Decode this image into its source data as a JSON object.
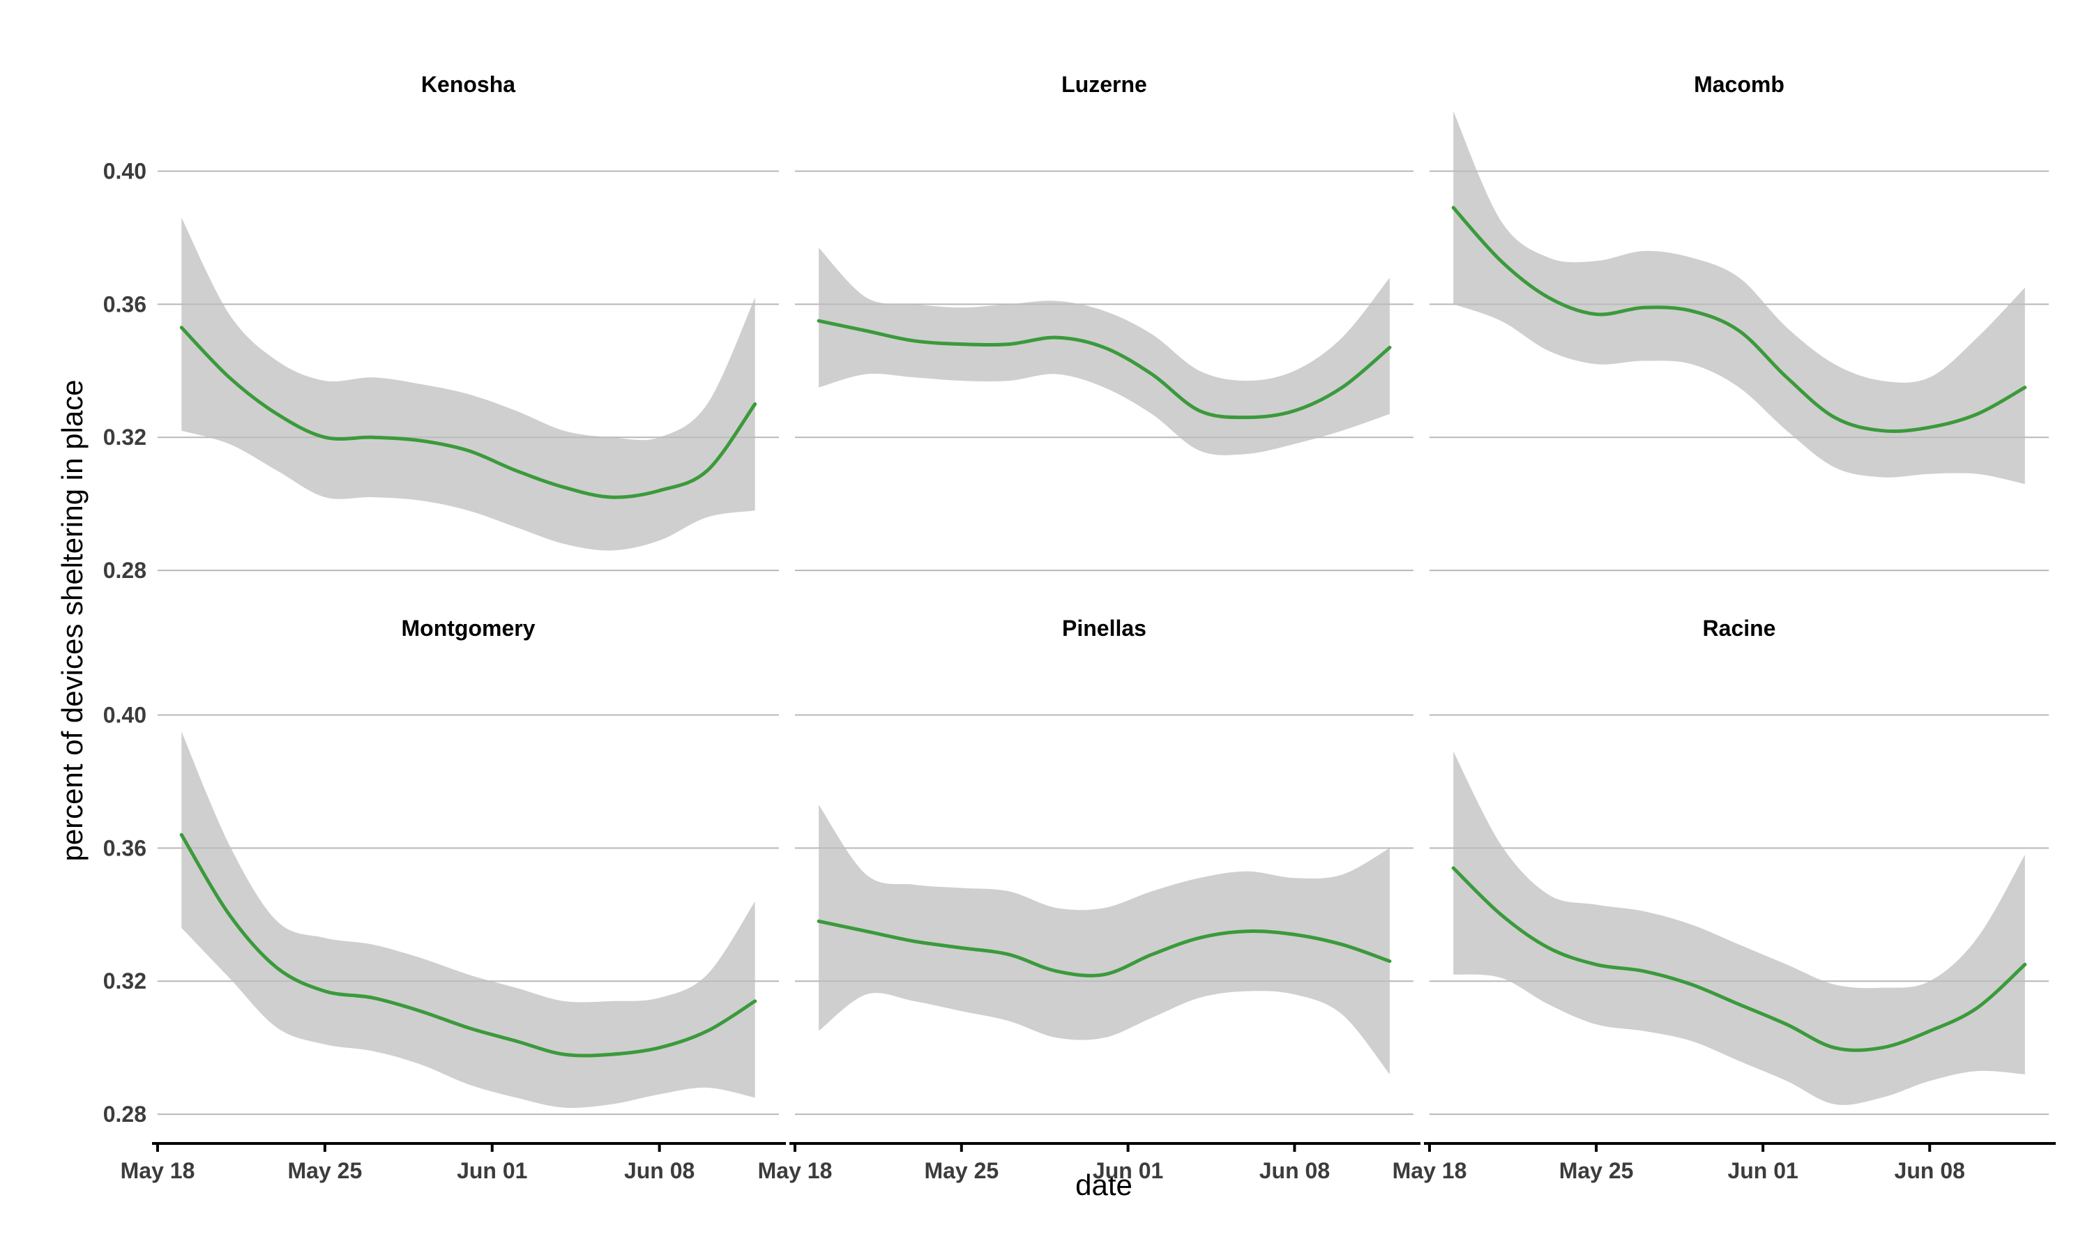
{
  "chart_data": {
    "type": "line",
    "xlabel": "date",
    "ylabel": "percent of devices sheltering in place",
    "x_ticks": [
      "May 18",
      "May 25",
      "Jun 01",
      "Jun 08"
    ],
    "y_ticks": [
      "0.28",
      "0.32",
      "0.36",
      "0.40"
    ],
    "ylim": [
      0.275,
      0.42
    ],
    "xlim": [
      "2020-05-18",
      "2020-06-13"
    ],
    "grid": "horizontal",
    "line_color": "#3b9a3b",
    "band_color": "#bdbdbd",
    "panels": [
      {
        "title": "Kenosha",
        "x": [
          "2020-05-19",
          "2020-05-21",
          "2020-05-23",
          "2020-05-25",
          "2020-05-27",
          "2020-05-29",
          "2020-05-31",
          "2020-06-02",
          "2020-06-04",
          "2020-06-06",
          "2020-06-08",
          "2020-06-10",
          "2020-06-12"
        ],
        "y": [
          0.353,
          0.338,
          0.327,
          0.32,
          0.32,
          0.319,
          0.316,
          0.31,
          0.305,
          0.302,
          0.304,
          0.31,
          0.33
        ],
        "lower": [
          0.322,
          0.318,
          0.31,
          0.302,
          0.302,
          0.301,
          0.298,
          0.293,
          0.288,
          0.286,
          0.289,
          0.296,
          0.298
        ],
        "upper": [
          0.386,
          0.357,
          0.343,
          0.337,
          0.338,
          0.336,
          0.333,
          0.328,
          0.322,
          0.32,
          0.32,
          0.33,
          0.362
        ]
      },
      {
        "title": "Luzerne",
        "x": [
          "2020-05-19",
          "2020-05-21",
          "2020-05-23",
          "2020-05-25",
          "2020-05-27",
          "2020-05-29",
          "2020-05-31",
          "2020-06-02",
          "2020-06-04",
          "2020-06-06",
          "2020-06-08",
          "2020-06-10",
          "2020-06-12"
        ],
        "y": [
          0.355,
          0.352,
          0.349,
          0.348,
          0.348,
          0.35,
          0.347,
          0.339,
          0.328,
          0.326,
          0.328,
          0.335,
          0.347
        ],
        "lower": [
          0.335,
          0.339,
          0.338,
          0.337,
          0.337,
          0.339,
          0.335,
          0.327,
          0.316,
          0.315,
          0.318,
          0.322,
          0.327
        ],
        "upper": [
          0.377,
          0.362,
          0.36,
          0.359,
          0.36,
          0.361,
          0.358,
          0.351,
          0.34,
          0.337,
          0.34,
          0.35,
          0.368
        ]
      },
      {
        "title": "Macomb",
        "x": [
          "2020-05-19",
          "2020-05-21",
          "2020-05-23",
          "2020-05-25",
          "2020-05-27",
          "2020-05-29",
          "2020-05-31",
          "2020-06-02",
          "2020-06-04",
          "2020-06-06",
          "2020-06-08",
          "2020-06-10",
          "2020-06-12"
        ],
        "y": [
          0.389,
          0.373,
          0.362,
          0.357,
          0.359,
          0.358,
          0.352,
          0.338,
          0.326,
          0.322,
          0.323,
          0.327,
          0.335
        ],
        "lower": [
          0.36,
          0.355,
          0.346,
          0.342,
          0.343,
          0.342,
          0.335,
          0.322,
          0.311,
          0.308,
          0.309,
          0.309,
          0.306
        ],
        "upper": [
          0.418,
          0.385,
          0.374,
          0.373,
          0.376,
          0.374,
          0.368,
          0.353,
          0.342,
          0.337,
          0.338,
          0.35,
          0.365
        ]
      },
      {
        "title": "Montgomery",
        "x": [
          "2020-05-19",
          "2020-05-21",
          "2020-05-23",
          "2020-05-25",
          "2020-05-27",
          "2020-05-29",
          "2020-05-31",
          "2020-06-02",
          "2020-06-04",
          "2020-06-06",
          "2020-06-08",
          "2020-06-10",
          "2020-06-12"
        ],
        "y": [
          0.364,
          0.34,
          0.324,
          0.317,
          0.315,
          0.311,
          0.306,
          0.302,
          0.298,
          0.298,
          0.3,
          0.305,
          0.314
        ],
        "lower": [
          0.336,
          0.321,
          0.306,
          0.301,
          0.299,
          0.295,
          0.289,
          0.285,
          0.282,
          0.283,
          0.286,
          0.288,
          0.285
        ],
        "upper": [
          0.395,
          0.361,
          0.338,
          0.333,
          0.331,
          0.327,
          0.322,
          0.318,
          0.314,
          0.314,
          0.315,
          0.322,
          0.344
        ]
      },
      {
        "title": "Pinellas",
        "x": [
          "2020-05-19",
          "2020-05-21",
          "2020-05-23",
          "2020-05-25",
          "2020-05-27",
          "2020-05-29",
          "2020-05-31",
          "2020-06-02",
          "2020-06-04",
          "2020-06-06",
          "2020-06-08",
          "2020-06-10",
          "2020-06-12"
        ],
        "y": [
          0.338,
          0.335,
          0.332,
          0.33,
          0.328,
          0.323,
          0.322,
          0.328,
          0.333,
          0.335,
          0.334,
          0.331,
          0.326
        ],
        "lower": [
          0.305,
          0.316,
          0.314,
          0.311,
          0.308,
          0.303,
          0.303,
          0.309,
          0.315,
          0.317,
          0.316,
          0.31,
          0.292
        ],
        "upper": [
          0.373,
          0.352,
          0.349,
          0.348,
          0.347,
          0.342,
          0.342,
          0.347,
          0.351,
          0.353,
          0.351,
          0.352,
          0.36
        ]
      },
      {
        "title": "Racine",
        "x": [
          "2020-05-19",
          "2020-05-21",
          "2020-05-23",
          "2020-05-25",
          "2020-05-27",
          "2020-05-29",
          "2020-05-31",
          "2020-06-02",
          "2020-06-04",
          "2020-06-06",
          "2020-06-08",
          "2020-06-10",
          "2020-06-12"
        ],
        "y": [
          0.354,
          0.34,
          0.33,
          0.325,
          0.323,
          0.319,
          0.313,
          0.307,
          0.3,
          0.3,
          0.305,
          0.312,
          0.325
        ],
        "lower": [
          0.322,
          0.321,
          0.313,
          0.307,
          0.305,
          0.302,
          0.296,
          0.29,
          0.283,
          0.285,
          0.29,
          0.293,
          0.292
        ],
        "upper": [
          0.389,
          0.361,
          0.346,
          0.343,
          0.341,
          0.337,
          0.331,
          0.325,
          0.319,
          0.318,
          0.32,
          0.333,
          0.358
        ]
      }
    ]
  }
}
